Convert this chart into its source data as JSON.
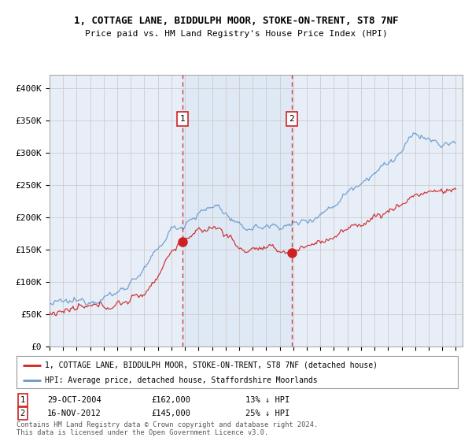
{
  "title1": "1, COTTAGE LANE, BIDDULPH MOOR, STOKE-ON-TRENT, ST8 7NF",
  "title2": "Price paid vs. HM Land Registry's House Price Index (HPI)",
  "ylim": [
    0,
    420000
  ],
  "yticks": [
    0,
    50000,
    100000,
    150000,
    200000,
    250000,
    300000,
    350000,
    400000
  ],
  "ytick_labels": [
    "£0",
    "£50K",
    "£100K",
    "£150K",
    "£200K",
    "£250K",
    "£300K",
    "£350K",
    "£400K"
  ],
  "background_color": "#ffffff",
  "plot_bg_color": "#e8eef8",
  "grid_color": "#cccccc",
  "hpi_color": "#6699cc",
  "price_color": "#cc2222",
  "marker1_date": 2004.83,
  "marker1_price": 162000,
  "marker1_label": "29-OCT-2004",
  "marker1_value": "£162,000",
  "marker1_hpi": "13% ↓ HPI",
  "marker2_date": 2012.88,
  "marker2_price": 145000,
  "marker2_label": "16-NOV-2012",
  "marker2_value": "£145,000",
  "marker2_hpi": "25% ↓ HPI",
  "legend_line1": "1, COTTAGE LANE, BIDDULPH MOOR, STOKE-ON-TRENT, ST8 7NF (detached house)",
  "legend_line2": "HPI: Average price, detached house, Staffordshire Moorlands",
  "footnote": "Contains HM Land Registry data © Crown copyright and database right 2024.\nThis data is licensed under the Open Government Licence v3.0.",
  "xstart": 1995.0,
  "xend": 2025.5
}
